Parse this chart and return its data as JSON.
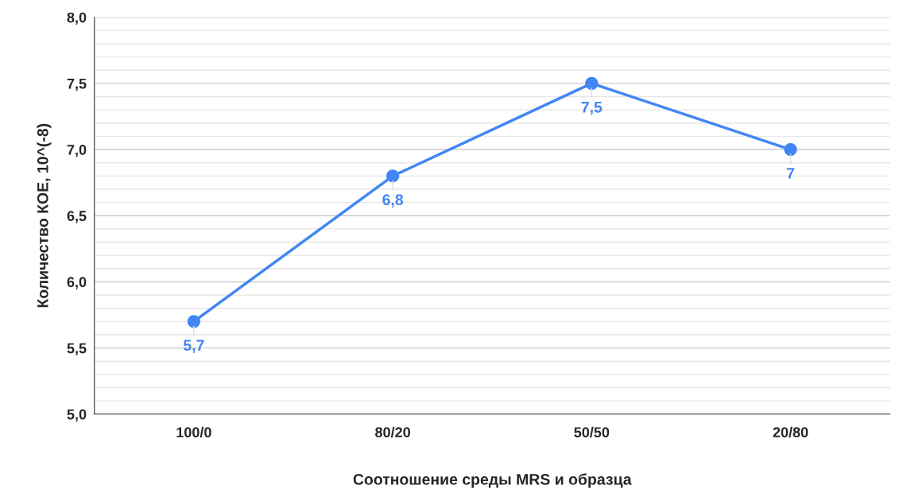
{
  "chart_data": {
    "type": "line",
    "xlabel": "Соотношение среды MRS и образца",
    "ylabel": "Количество КОЕ, 10^(-8)",
    "categories": [
      "100/0",
      "80/20",
      "50/50",
      "20/80"
    ],
    "series": [
      {
        "color": "#4285f4",
        "values": [
          5.7,
          6.8,
          7.5,
          7.0
        ],
        "value_labels": [
          "5,7",
          "6,8",
          "7,5",
          "7"
        ]
      }
    ],
    "ylim": [
      5.0,
      8.0
    ],
    "yticks": [
      {
        "value": 5.0,
        "label": "5,0"
      },
      {
        "value": 5.1,
        "label": null
      },
      {
        "value": 5.2,
        "label": null
      },
      {
        "value": 5.3,
        "label": null
      },
      {
        "value": 5.4,
        "label": null
      },
      {
        "value": 5.5,
        "label": "5,5"
      },
      {
        "value": 5.6,
        "label": null
      },
      {
        "value": 5.7,
        "label": null
      },
      {
        "value": 5.8,
        "label": null
      },
      {
        "value": 5.9,
        "label": null
      },
      {
        "value": 6.0,
        "label": "6,0"
      },
      {
        "value": 6.1,
        "label": null
      },
      {
        "value": 6.2,
        "label": null
      },
      {
        "value": 6.3,
        "label": null
      },
      {
        "value": 6.4,
        "label": null
      },
      {
        "value": 6.5,
        "label": "6,5"
      },
      {
        "value": 6.6,
        "label": null
      },
      {
        "value": 6.7,
        "label": null
      },
      {
        "value": 6.8,
        "label": null
      },
      {
        "value": 6.9,
        "label": null
      },
      {
        "value": 7.0,
        "label": "7,0"
      },
      {
        "value": 7.1,
        "label": null
      },
      {
        "value": 7.2,
        "label": null
      },
      {
        "value": 7.3,
        "label": null
      },
      {
        "value": 7.4,
        "label": null
      },
      {
        "value": 7.5,
        "label": "7,5"
      },
      {
        "value": 7.6,
        "label": null
      },
      {
        "value": 7.7,
        "label": null
      },
      {
        "value": 7.8,
        "label": null
      },
      {
        "value": 7.9,
        "label": null
      },
      {
        "value": 8.0,
        "label": "8,0"
      }
    ],
    "grid": "y",
    "marker": "circle",
    "line_style": "solid",
    "legend": false
  }
}
